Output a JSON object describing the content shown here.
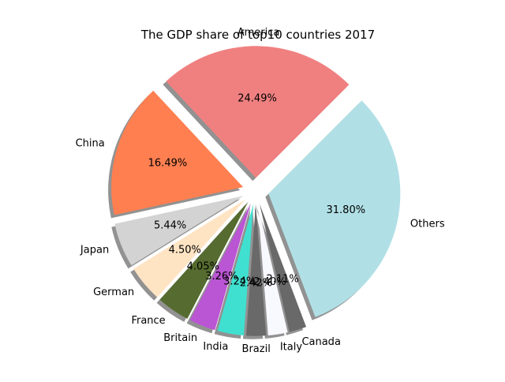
{
  "chart_data": {
    "type": "pie",
    "title": "The GDP share of top10 countries 2017",
    "slices": [
      {
        "label": "America",
        "value": 24.49,
        "pct_label": "24.49%",
        "color": "#f08080"
      },
      {
        "label": "China",
        "value": 16.49,
        "pct_label": "16.49%",
        "color": "#ff7f50"
      },
      {
        "label": "Japan",
        "value": 5.44,
        "pct_label": "5.44%",
        "color": "#d3d3d3"
      },
      {
        "label": "German",
        "value": 4.5,
        "pct_label": "4.50%",
        "color": "#ffe4c4"
      },
      {
        "label": "France",
        "value": 4.05,
        "pct_label": "4.05%",
        "color": "#556b2f"
      },
      {
        "label": "Britain",
        "value": 3.26,
        "pct_label": "3.26%",
        "color": "#ba55d3"
      },
      {
        "label": "India",
        "value": 3.24,
        "pct_label": "3.24%",
        "color": "#40e0d0"
      },
      {
        "label": "Brazil",
        "value": 2.42,
        "pct_label": "2.42%",
        "color": "#696969"
      },
      {
        "label": "Italy",
        "value": 2.4,
        "pct_label": "2.40%",
        "color": "#f8f8ff"
      },
      {
        "label": "Canada",
        "value": 2.11,
        "pct_label": "2.11%",
        "color": "#696969"
      },
      {
        "label": "Others",
        "value": 31.8,
        "pct_label": "31.80%",
        "color": "#b0e0e6"
      }
    ],
    "start_angle": 45,
    "direction": "counterclockwise",
    "exploded": true,
    "shadow": true,
    "legend": "none"
  }
}
